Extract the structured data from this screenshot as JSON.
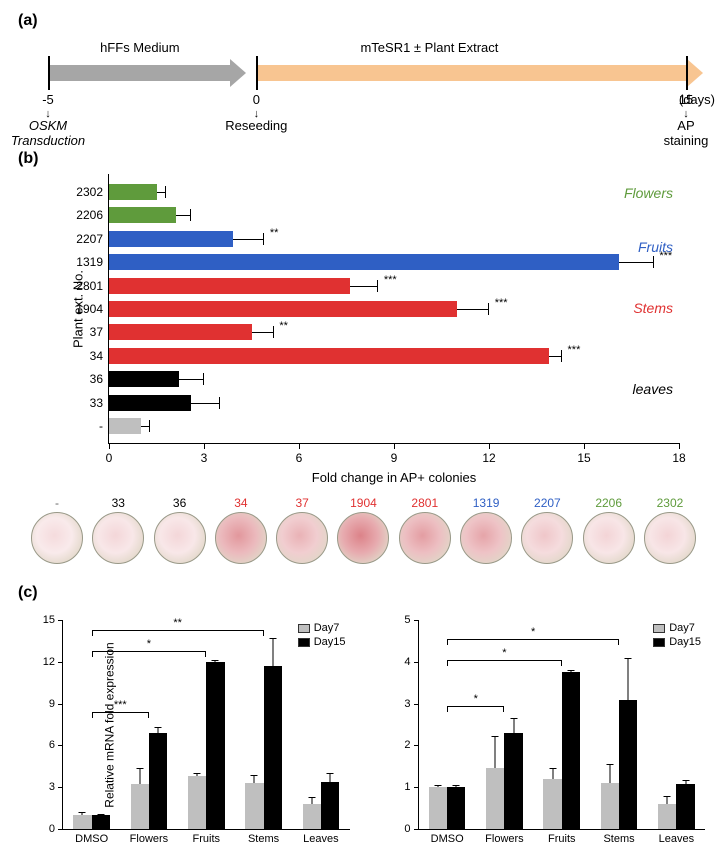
{
  "panelA": {
    "label": "(a)",
    "phase1_label": "hFFs Medium",
    "phase2_label": "mTeSR1 ± Plant Extract",
    "days_unit": "(days)",
    "ticks": [
      {
        "pos_pct": 0,
        "label": "-5",
        "below": "OSKM\nTransduction",
        "italic": true
      },
      {
        "pos_pct": 32,
        "label": "0",
        "below": "Reseeding",
        "italic": false
      },
      {
        "pos_pct": 98,
        "label": "15",
        "below": "AP staining",
        "italic": false
      }
    ],
    "colors": {
      "grey": "#a6a6a6",
      "orange": "#f8c591"
    }
  },
  "panelB": {
    "label": "(b)",
    "xaxis_title": "Fold change in AP+ colonies",
    "yaxis_title": "Plant ext. No.",
    "xmax": 18,
    "xtick_step": 3,
    "groups": {
      "Flowers": {
        "color": "#5f9b3c",
        "label_top_pct": 4
      },
      "Fruits": {
        "color": "#2f5fc4",
        "label_top_pct": 24
      },
      "Stems": {
        "color": "#e03131",
        "label_top_pct": 47
      },
      "leaves": {
        "color": "#000000",
        "label_top_pct": 77
      }
    },
    "rows": [
      {
        "id": "2302",
        "value": 1.5,
        "err": 0.3,
        "group": "Flowers",
        "sig": ""
      },
      {
        "id": "2206",
        "value": 2.1,
        "err": 0.5,
        "group": "Flowers",
        "sig": ""
      },
      {
        "id": "2207",
        "value": 3.9,
        "err": 1.0,
        "group": "Fruits",
        "sig": "**"
      },
      {
        "id": "1319",
        "value": 16.1,
        "err": 1.1,
        "group": "Fruits",
        "sig": "***"
      },
      {
        "id": "2801",
        "value": 7.6,
        "err": 0.9,
        "group": "Stems",
        "sig": "***"
      },
      {
        "id": "1904",
        "value": 11.0,
        "err": 1.0,
        "group": "Stems",
        "sig": "***"
      },
      {
        "id": "37",
        "value": 4.5,
        "err": 0.7,
        "group": "Stems",
        "sig": "**"
      },
      {
        "id": "34",
        "value": 13.9,
        "err": 0.4,
        "group": "Stems",
        "sig": "***"
      },
      {
        "id": "36",
        "value": 2.2,
        "err": 0.8,
        "group": "leaves",
        "sig": ""
      },
      {
        "id": "33",
        "value": 2.6,
        "err": 0.9,
        "group": "leaves",
        "sig": ""
      },
      {
        "id": "-",
        "value": 1.0,
        "err": 0.3,
        "group": "control",
        "sig": ""
      }
    ],
    "control_color": "#bfbfbf",
    "dishes": [
      {
        "label": "-",
        "group": "control",
        "intensity": 0.05
      },
      {
        "label": "33",
        "group": "leaves",
        "intensity": 0.08
      },
      {
        "label": "36",
        "group": "leaves",
        "intensity": 0.08
      },
      {
        "label": "34",
        "group": "Stems",
        "intensity": 0.55
      },
      {
        "label": "37",
        "group": "Stems",
        "intensity": 0.35
      },
      {
        "label": "1904",
        "group": "Stems",
        "intensity": 0.7
      },
      {
        "label": "2801",
        "group": "Stems",
        "intensity": 0.5
      },
      {
        "label": "1319",
        "group": "Fruits",
        "intensity": 0.45
      },
      {
        "label": "2207",
        "group": "Fruits",
        "intensity": 0.2
      },
      {
        "label": "2206",
        "group": "Flowers",
        "intensity": 0.1
      },
      {
        "label": "2302",
        "group": "Flowers",
        "intensity": 0.1
      }
    ]
  },
  "panelC": {
    "label": "(c)",
    "ytitle": "Relative mRNA fold expression",
    "legend": {
      "day7": "Day7",
      "day15": "Day15"
    },
    "colors": {
      "day7": "#bfbfbf",
      "day15": "#000000"
    },
    "categories": [
      "DMSO",
      "Flowers",
      "Fruits",
      "Stems",
      "Leaves"
    ],
    "chart1": {
      "ymax": 15,
      "ytick_step": 3,
      "day7": [
        1.0,
        3.2,
        3.8,
        3.3,
        1.8
      ],
      "day15": [
        1.0,
        6.9,
        12.0,
        11.7,
        3.4
      ],
      "err7": [
        0.2,
        1.2,
        0.2,
        0.6,
        0.5
      ],
      "err15": [
        0.1,
        0.4,
        0.1,
        2.0,
        0.6
      ],
      "sig": [
        {
          "from": 0,
          "to": 1,
          "label": "***",
          "y": 8.4
        },
        {
          "from": 0,
          "to": 2,
          "label": "*",
          "y": 12.8
        },
        {
          "from": 0,
          "to": 3,
          "label": "**",
          "y": 14.3
        }
      ]
    },
    "chart2": {
      "ymax": 5,
      "ytick_step": 1,
      "day7": [
        1.0,
        1.45,
        1.2,
        1.1,
        0.6
      ],
      "day15": [
        1.0,
        2.3,
        3.75,
        3.08,
        1.08
      ],
      "err7": [
        0.05,
        0.78,
        0.25,
        0.45,
        0.2
      ],
      "err15": [
        0.05,
        0.35,
        0.05,
        1.0,
        0.1
      ],
      "sig": [
        {
          "from": 0,
          "to": 1,
          "label": "*",
          "y": 2.95
        },
        {
          "from": 0,
          "to": 2,
          "label": "*",
          "y": 4.05
        },
        {
          "from": 0,
          "to": 3,
          "label": "*",
          "y": 4.55
        }
      ]
    }
  }
}
